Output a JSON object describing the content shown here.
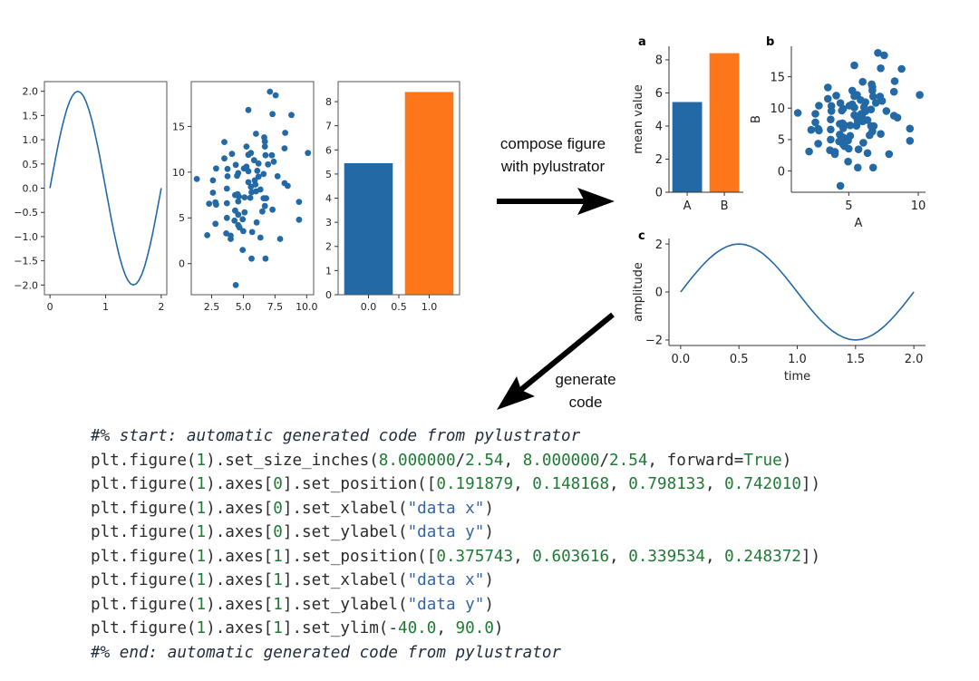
{
  "annotations": {
    "compose_line1": "compose figure",
    "compose_line2": "with pylustrator",
    "generate_line1": "generate",
    "generate_line2": "code"
  },
  "panel_labels": {
    "a": "a",
    "b": "b",
    "c": "c"
  },
  "colors": {
    "blue": "#2369a6",
    "orange": "#fd7619",
    "arrow": "#000000",
    "comment": "#1f2d3d",
    "number": "#1e7b34",
    "string": "#3465a4"
  },
  "chart_data": [
    {
      "id": "raw-line",
      "type": "line",
      "frame": "box",
      "xlim": [
        -0.1,
        2.1
      ],
      "ylim": [
        -2.2,
        2.2
      ],
      "xticks": [
        "0",
        "1",
        "2"
      ],
      "xtick_values": [
        0,
        1,
        2
      ],
      "yticks": [
        "−2.0",
        "−1.5",
        "−1.0",
        "−0.5",
        "0.0",
        "0.5",
        "1.0",
        "1.5",
        "2.0"
      ],
      "ytick_values": [
        -2,
        -1.5,
        -1,
        -0.5,
        0,
        0.5,
        1,
        1.5,
        2
      ],
      "x": [
        0,
        0.05,
        0.1,
        0.15,
        0.2,
        0.25,
        0.3,
        0.35,
        0.4,
        0.45,
        0.5,
        0.55,
        0.6,
        0.65,
        0.7,
        0.75,
        0.8,
        0.85,
        0.9,
        0.95,
        1,
        1.05,
        1.1,
        1.15,
        1.2,
        1.25,
        1.3,
        1.35,
        1.4,
        1.45,
        1.5,
        1.55,
        1.6,
        1.65,
        1.7,
        1.75,
        1.8,
        1.85,
        1.9,
        1.95,
        2
      ],
      "y": [
        0,
        0.313,
        0.618,
        0.908,
        1.176,
        1.414,
        1.618,
        1.782,
        1.902,
        1.975,
        2,
        1.975,
        1.902,
        1.782,
        1.618,
        1.414,
        1.176,
        0.908,
        0.618,
        0.313,
        0,
        -0.313,
        -0.618,
        -0.908,
        -1.176,
        -1.414,
        -1.618,
        -1.782,
        -1.902,
        -1.975,
        -2,
        -1.975,
        -1.902,
        -1.782,
        -1.618,
        -1.414,
        -1.176,
        -0.908,
        -0.618,
        -0.313,
        0
      ]
    },
    {
      "id": "raw-scatter",
      "type": "scatter",
      "frame": "box",
      "xlim": [
        0.89,
        10.55
      ],
      "ylim": [
        -3.4,
        19.9
      ],
      "xticks": [
        "2.5",
        "5.0",
        "7.5",
        "10.0"
      ],
      "xtick_values": [
        2.5,
        5,
        7.5,
        10
      ],
      "yticks": [
        "0",
        "5",
        "10",
        "15"
      ],
      "ytick_values": [
        0,
        5,
        10,
        15
      ],
      "points": [
        [
          1.33,
          9.25
        ],
        [
          7.1,
          18.8
        ],
        [
          7.55,
          18.4
        ],
        [
          5.4,
          16.8
        ],
        [
          7.3,
          16.35
        ],
        [
          8.8,
          16.25
        ],
        [
          6.0,
          14.2
        ],
        [
          8.3,
          14.3
        ],
        [
          6.65,
          13.8
        ],
        [
          6.7,
          13.35
        ],
        [
          3.5,
          13.3
        ],
        [
          5.25,
          12.8
        ],
        [
          6.7,
          12.8
        ],
        [
          8.25,
          12.6
        ],
        [
          4.1,
          12.0
        ],
        [
          5.6,
          12.1
        ],
        [
          5.4,
          11.9
        ],
        [
          6.75,
          11.85
        ],
        [
          7.25,
          11.85
        ],
        [
          10.1,
          12.1
        ],
        [
          3.5,
          11.5
        ],
        [
          5.85,
          11.3
        ],
        [
          6.2,
          10.95
        ],
        [
          7.4,
          11.15
        ],
        [
          6.95,
          10.85
        ],
        [
          4.4,
          10.8
        ],
        [
          5.25,
          10.6
        ],
        [
          2.85,
          10.4
        ],
        [
          3.75,
          10.35
        ],
        [
          5.05,
          10.4
        ],
        [
          5.4,
          10.1
        ],
        [
          6.1,
          10.15
        ],
        [
          4.6,
          9.9
        ],
        [
          6.6,
          9.8
        ],
        [
          3.75,
          9.55
        ],
        [
          4.5,
          9.6
        ],
        [
          7.7,
          9.55
        ],
        [
          6.2,
          9.5
        ],
        [
          2.6,
          9.1
        ],
        [
          5.4,
          8.9
        ],
        [
          5.9,
          9.1
        ],
        [
          8.25,
          8.8
        ],
        [
          8.5,
          8.5
        ],
        [
          5.6,
          8.4
        ],
        [
          5.95,
          8.65
        ],
        [
          3.7,
          8.2
        ],
        [
          6.35,
          8.1
        ],
        [
          6.0,
          7.9
        ],
        [
          2.6,
          7.75
        ],
        [
          5.65,
          7.8
        ],
        [
          4.35,
          7.5
        ],
        [
          4.55,
          7.6
        ],
        [
          5.55,
          7.2
        ],
        [
          5.1,
          7.25
        ],
        [
          4.65,
          7.35
        ],
        [
          6.6,
          7.15
        ],
        [
          6.8,
          7.15
        ],
        [
          2.3,
          6.55
        ],
        [
          2.8,
          6.7
        ],
        [
          3.7,
          6.6
        ],
        [
          4.6,
          6.8
        ],
        [
          2.85,
          6.45
        ],
        [
          6.7,
          6.3
        ],
        [
          9.4,
          6.75
        ],
        [
          4.35,
          5.8
        ],
        [
          6.5,
          5.7
        ],
        [
          7.3,
          5.9
        ],
        [
          5.1,
          5.6
        ],
        [
          4.6,
          5.35
        ],
        [
          3.7,
          5.0
        ],
        [
          4.95,
          4.85
        ],
        [
          9.4,
          4.8
        ],
        [
          4.3,
          4.7
        ],
        [
          6.05,
          4.5
        ],
        [
          2.8,
          4.35
        ],
        [
          4.6,
          4.2
        ],
        [
          4.7,
          3.95
        ],
        [
          5.0,
          3.55
        ],
        [
          5.7,
          3.45
        ],
        [
          3.65,
          3.3
        ],
        [
          4.0,
          3.05
        ],
        [
          2.15,
          3.1
        ],
        [
          6.35,
          2.85
        ],
        [
          7.9,
          2.7
        ],
        [
          4.0,
          2.7
        ],
        [
          4.95,
          1.5
        ],
        [
          5.65,
          0.55
        ],
        [
          6.75,
          0.55
        ],
        [
          4.4,
          -2.35
        ]
      ]
    },
    {
      "id": "raw-bar",
      "type": "bar",
      "frame": "box",
      "xlim": [
        -0.5,
        1.5
      ],
      "ylim": [
        0,
        8.83
      ],
      "xticks": [
        "0.0",
        "0.5",
        "1.0"
      ],
      "xtick_values": [
        0,
        0.5,
        1
      ],
      "yticks": [
        "0",
        "1",
        "2",
        "3",
        "4",
        "5",
        "6",
        "7",
        "8"
      ],
      "ytick_values": [
        0,
        1,
        2,
        3,
        4,
        5,
        6,
        7,
        8
      ],
      "categories": [
        0,
        1
      ],
      "values": [
        5.45,
        8.4
      ],
      "bar_width": 0.8
    },
    {
      "id": "panel-a",
      "type": "bar",
      "frame": "left-bottom",
      "xlim": [
        -0.49,
        1.51
      ],
      "ylim": [
        0,
        8.82
      ],
      "xticks": [
        "A",
        "B"
      ],
      "xtick_values": [
        0,
        1
      ],
      "yticks": [
        "0",
        "2",
        "4",
        "6",
        "8"
      ],
      "ytick_values": [
        0,
        2,
        4,
        6,
        8
      ],
      "ylabel": "mean value",
      "categories": [
        0,
        1
      ],
      "values": [
        5.45,
        8.4
      ],
      "bar_width": 0.8
    },
    {
      "id": "panel-b",
      "type": "scatter",
      "frame": "left-bottom",
      "xlim": [
        0.87,
        10.52
      ],
      "ylim": [
        -3.38,
        19.85
      ],
      "xticks": [
        "5",
        "10"
      ],
      "xtick_values": [
        5,
        10
      ],
      "yticks": [
        "0",
        "5",
        "10",
        "15"
      ],
      "ytick_values": [
        0,
        5,
        10,
        15
      ],
      "xlabel": "A",
      "ylabel": "B",
      "points_from": "raw-scatter"
    },
    {
      "id": "panel-c",
      "type": "line",
      "frame": "left-bottom",
      "xlim": [
        -0.1,
        2.1
      ],
      "ylim": [
        -2.23,
        2.23
      ],
      "xticks": [
        "0.0",
        "0.5",
        "1.0",
        "1.5",
        "2.0"
      ],
      "xtick_values": [
        0,
        0.5,
        1,
        1.5,
        2
      ],
      "yticks": [
        "−2",
        "0",
        "2"
      ],
      "ytick_values": [
        -2,
        0,
        2
      ],
      "xlabel": "time",
      "ylabel": "amplitude",
      "points_from": "raw-line"
    }
  ],
  "code": {
    "lines": [
      [
        {
          "t": "#% start: automatic generated code from pylustrator",
          "c": "comment"
        }
      ],
      [
        {
          "t": "plt.figure(",
          "c": "plain"
        },
        {
          "t": "1",
          "c": "num"
        },
        {
          "t": ").set_size_inches(",
          "c": "plain"
        },
        {
          "t": "8.000000",
          "c": "num"
        },
        {
          "t": "/",
          "c": "plain"
        },
        {
          "t": "2.54",
          "c": "num"
        },
        {
          "t": ", ",
          "c": "plain"
        },
        {
          "t": "8.000000",
          "c": "num"
        },
        {
          "t": "/",
          "c": "plain"
        },
        {
          "t": "2.54",
          "c": "num"
        },
        {
          "t": ", forward=",
          "c": "plain"
        },
        {
          "t": "True",
          "c": "num"
        },
        {
          "t": ")",
          "c": "plain"
        }
      ],
      [
        {
          "t": "plt.figure(",
          "c": "plain"
        },
        {
          "t": "1",
          "c": "num"
        },
        {
          "t": ").axes[",
          "c": "plain"
        },
        {
          "t": "0",
          "c": "num"
        },
        {
          "t": "].set_position([",
          "c": "plain"
        },
        {
          "t": "0.191879",
          "c": "num"
        },
        {
          "t": ", ",
          "c": "plain"
        },
        {
          "t": "0.148168",
          "c": "num"
        },
        {
          "t": ", ",
          "c": "plain"
        },
        {
          "t": "0.798133",
          "c": "num"
        },
        {
          "t": ", ",
          "c": "plain"
        },
        {
          "t": "0.742010",
          "c": "num"
        },
        {
          "t": "])",
          "c": "plain"
        }
      ],
      [
        {
          "t": "plt.figure(",
          "c": "plain"
        },
        {
          "t": "1",
          "c": "num"
        },
        {
          "t": ").axes[",
          "c": "plain"
        },
        {
          "t": "0",
          "c": "num"
        },
        {
          "t": "].set_xlabel(",
          "c": "plain"
        },
        {
          "t": "\"data x\"",
          "c": "str"
        },
        {
          "t": ")",
          "c": "plain"
        }
      ],
      [
        {
          "t": "plt.figure(",
          "c": "plain"
        },
        {
          "t": "1",
          "c": "num"
        },
        {
          "t": ").axes[",
          "c": "plain"
        },
        {
          "t": "0",
          "c": "num"
        },
        {
          "t": "].set_ylabel(",
          "c": "plain"
        },
        {
          "t": "\"data y\"",
          "c": "str"
        },
        {
          "t": ")",
          "c": "plain"
        }
      ],
      [
        {
          "t": "plt.figure(",
          "c": "plain"
        },
        {
          "t": "1",
          "c": "num"
        },
        {
          "t": ").axes[",
          "c": "plain"
        },
        {
          "t": "1",
          "c": "num"
        },
        {
          "t": "].set_position([",
          "c": "plain"
        },
        {
          "t": "0.375743",
          "c": "num"
        },
        {
          "t": ", ",
          "c": "plain"
        },
        {
          "t": "0.603616",
          "c": "num"
        },
        {
          "t": ", ",
          "c": "plain"
        },
        {
          "t": "0.339534",
          "c": "num"
        },
        {
          "t": ", ",
          "c": "plain"
        },
        {
          "t": "0.248372",
          "c": "num"
        },
        {
          "t": "])",
          "c": "plain"
        }
      ],
      [
        {
          "t": "plt.figure(",
          "c": "plain"
        },
        {
          "t": "1",
          "c": "num"
        },
        {
          "t": ").axes[",
          "c": "plain"
        },
        {
          "t": "1",
          "c": "num"
        },
        {
          "t": "].set_xlabel(",
          "c": "plain"
        },
        {
          "t": "\"data x\"",
          "c": "str"
        },
        {
          "t": ")",
          "c": "plain"
        }
      ],
      [
        {
          "t": "plt.figure(",
          "c": "plain"
        },
        {
          "t": "1",
          "c": "num"
        },
        {
          "t": ").axes[",
          "c": "plain"
        },
        {
          "t": "1",
          "c": "num"
        },
        {
          "t": "].set_ylabel(",
          "c": "plain"
        },
        {
          "t": "\"data y\"",
          "c": "str"
        },
        {
          "t": ")",
          "c": "plain"
        }
      ],
      [
        {
          "t": "plt.figure(",
          "c": "plain"
        },
        {
          "t": "1",
          "c": "num"
        },
        {
          "t": ").axes[",
          "c": "plain"
        },
        {
          "t": "1",
          "c": "num"
        },
        {
          "t": "].set_ylim(-",
          "c": "plain"
        },
        {
          "t": "40.0",
          "c": "num"
        },
        {
          "t": ", ",
          "c": "plain"
        },
        {
          "t": "90.0",
          "c": "num"
        },
        {
          "t": ")",
          "c": "plain"
        }
      ],
      [
        {
          "t": "#% end: automatic generated code from pylustrator",
          "c": "comment"
        }
      ]
    ]
  }
}
